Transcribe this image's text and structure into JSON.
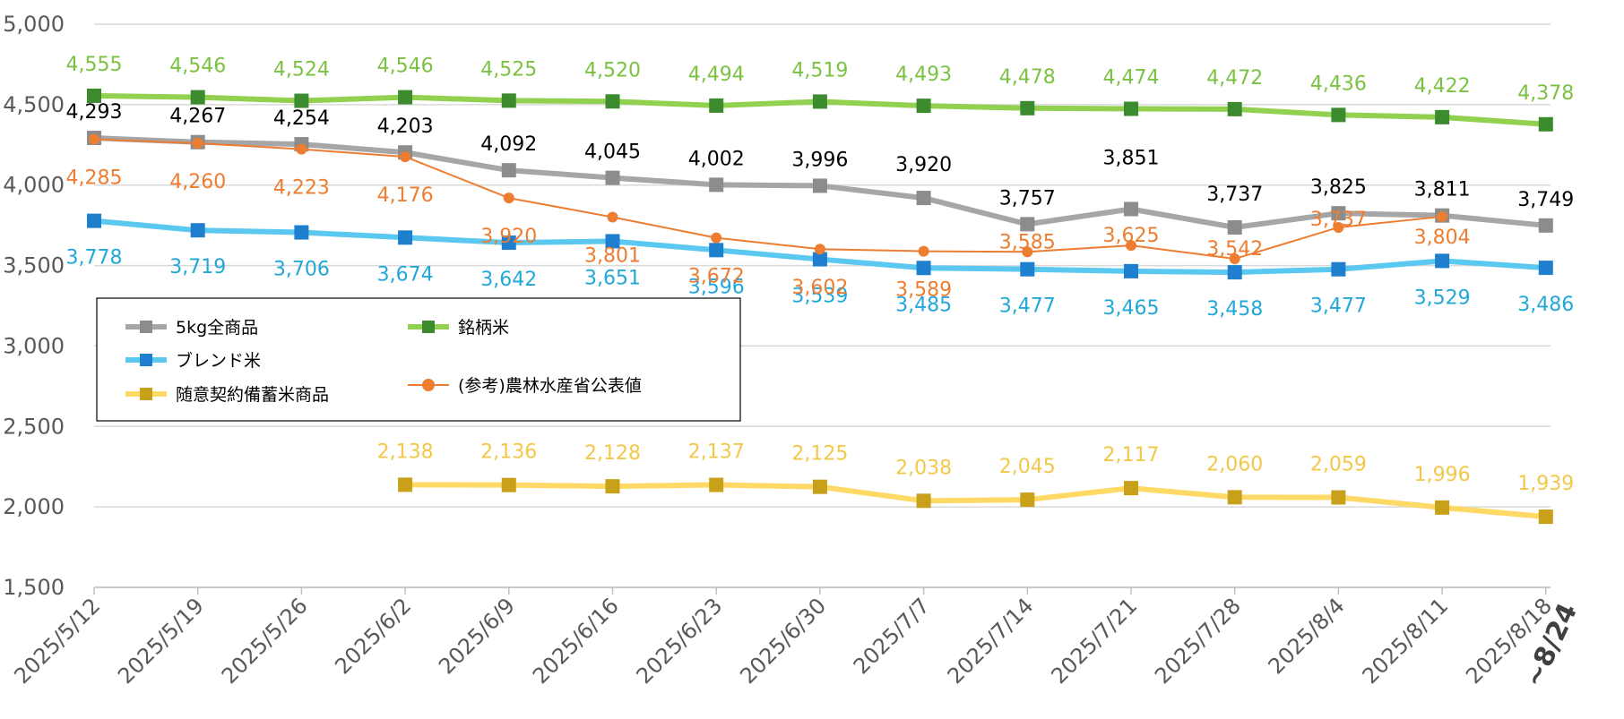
{
  "chart_data": {
    "type": "line",
    "title": "",
    "xlabel": "",
    "ylabel": "",
    "x_note": "~8/24",
    "categories": [
      "2025/5/12",
      "2025/5/19",
      "2025/5/26",
      "2025/6/2",
      "2025/6/9",
      "2025/6/16",
      "2025/6/23",
      "2025/6/30",
      "2025/7/7",
      "2025/7/14",
      "2025/7/21",
      "2025/7/28",
      "2025/8/4",
      "2025/8/11",
      "2025/8/18"
    ],
    "ylim": [
      1500,
      5000
    ],
    "yticks": [
      "1,500",
      "2,000",
      "2,500",
      "3,000",
      "3,500",
      "4,000",
      "4,500",
      "5,000"
    ],
    "grid": true,
    "legend_position": "left-middle",
    "series": [
      {
        "name": "5kg全商品",
        "color": "#a6a6a6",
        "marker": "square",
        "marker_color": "#8c8c8c",
        "label_color": "#000000",
        "values": [
          4293,
          4267,
          4254,
          4203,
          4092,
          4045,
          4002,
          3996,
          3920,
          3757,
          3851,
          3737,
          3825,
          3811,
          3749
        ],
        "labels": [
          "4,293",
          "4,267",
          "4,254",
          "4,203",
          "4,092",
          "4,045",
          "4,002",
          "3,996",
          "3,920",
          "3,757",
          "3,851",
          "3,737",
          "3,825",
          "3,811",
          "3,749"
        ]
      },
      {
        "name": "銘柄米",
        "color": "#92d050",
        "marker": "square",
        "marker_color": "#3d8b2f",
        "label_color": "#7cc242",
        "values": [
          4555,
          4546,
          4524,
          4546,
          4525,
          4520,
          4494,
          4519,
          4493,
          4478,
          4474,
          4472,
          4436,
          4422,
          4378
        ],
        "labels": [
          "4,555",
          "4,546",
          "4,524",
          "4,546",
          "4,525",
          "4,520",
          "4,494",
          "4,519",
          "4,493",
          "4,478",
          "4,474",
          "4,472",
          "4,436",
          "4,422",
          "4,378"
        ]
      },
      {
        "name": "ブレンド米",
        "color": "#5bc8f0",
        "marker": "square",
        "marker_color": "#1f7fcf",
        "label_color": "#21a8d8",
        "values": [
          3778,
          3719,
          3706,
          3674,
          3642,
          3651,
          3596,
          3539,
          3485,
          3477,
          3465,
          3458,
          3477,
          3529,
          3486
        ],
        "labels": [
          "3,778",
          "3,719",
          "3,706",
          "3,674",
          "3,642",
          "3,651",
          "3,596",
          "3,539",
          "3,485",
          "3,477",
          "3,465",
          "3,458",
          "3,477",
          "3,529",
          "3,486"
        ]
      },
      {
        "name": "(参考)農林水産省公表値",
        "color": "#ed7d31",
        "marker": "circle",
        "marker_color": "#ed7d31",
        "label_color": "#ed7d31",
        "values": [
          4285,
          4260,
          4223,
          4176,
          3920,
          3801,
          3672,
          3602,
          3589,
          3585,
          3625,
          3542,
          3737,
          3804,
          null
        ],
        "labels": [
          "4,285",
          "4,260",
          "4,223",
          "4,176",
          "3,920",
          "3,801",
          "3,672",
          "3,602",
          "3,589",
          "3,585",
          "3,625",
          "3,542",
          "3,737",
          "3,804",
          ""
        ]
      },
      {
        "name": "随意契約備蓄米商品",
        "color": "#ffd966",
        "marker": "square",
        "marker_color": "#c9a01a",
        "label_color": "#f2c84b",
        "values": [
          null,
          null,
          null,
          2138,
          2136,
          2128,
          2137,
          2125,
          2038,
          2045,
          2117,
          2060,
          2059,
          1996,
          1939
        ],
        "labels": [
          "",
          "",
          "",
          "2,138",
          "2,136",
          "2,128",
          "2,137",
          "2,125",
          "2,038",
          "2,045",
          "2,117",
          "2,060",
          "2,059",
          "1,996",
          "1,939"
        ]
      }
    ]
  },
  "legend": {
    "items": [
      {
        "label": "5kg全商品",
        "series_index": 0
      },
      {
        "label": "銘柄米",
        "series_index": 1
      },
      {
        "label": "ブレンド米",
        "series_index": 2
      },
      {
        "label": "随意契約備蓄米商品",
        "series_index": 4
      },
      {
        "label": "(参考)農林水産省公表値",
        "series_index": 3
      }
    ]
  }
}
